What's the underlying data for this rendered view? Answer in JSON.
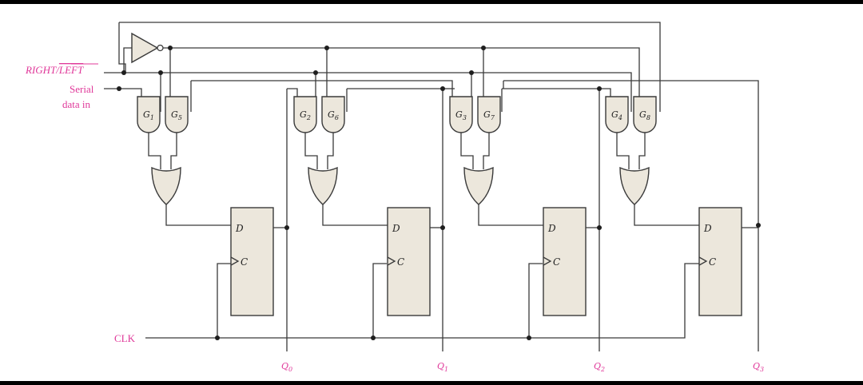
{
  "colors": {
    "label": "#e0399a",
    "wire": "#3a3a3a",
    "fill": "#ece7dc"
  },
  "inputs": {
    "right_left_prefix": "RIGHT/",
    "right_left_bar": "LEFT",
    "serial_line1": "Serial",
    "serial_line2": "data in",
    "clk": "CLK"
  },
  "gates": [
    [
      "G1",
      "G5"
    ],
    [
      "G2",
      "G6"
    ],
    [
      "G3",
      "G7"
    ],
    [
      "G4",
      "G8"
    ]
  ],
  "flipflops": [
    {
      "d": "D",
      "c": "C"
    },
    {
      "d": "D",
      "c": "C"
    },
    {
      "d": "D",
      "c": "C"
    },
    {
      "d": "D",
      "c": "C"
    }
  ],
  "outputs": [
    "Q0",
    "Q1",
    "Q2",
    "Q3"
  ]
}
